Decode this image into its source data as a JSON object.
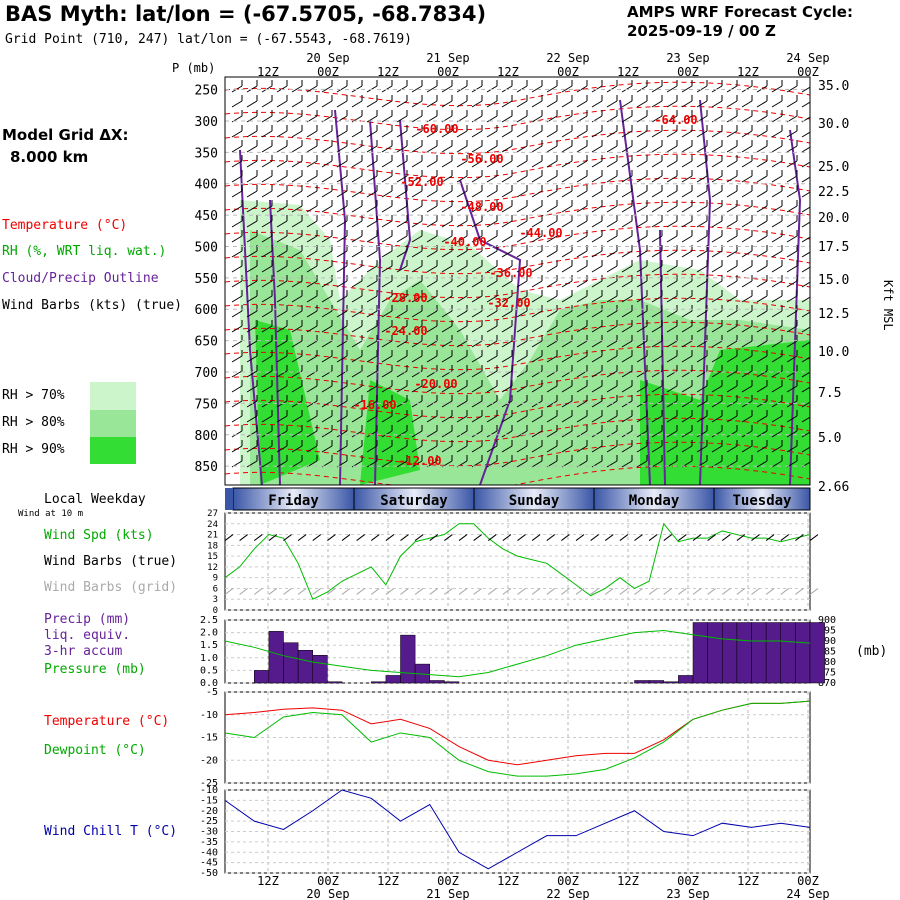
{
  "header": {
    "title": "BAS Myth:  lat/lon = (-67.5705, -68.7834)",
    "grid_point": "Grid Point (710, 247) lat/lon = (-67.5543, -68.7619)",
    "cycle_line1": "AMPS WRF Forecast Cycle:",
    "cycle_line2": "2025-09-19 / 00  Z"
  },
  "model_grid": {
    "label": "Model Grid ΔX:",
    "value": "8.000 km"
  },
  "colors": {
    "temperature": "#ee0000",
    "rh": "#00aa00",
    "cloud": "#662299",
    "wind": "#000000",
    "grid_wind": "#aaaaaa",
    "pressure": "#00bb00",
    "precip": "#551a8b",
    "windchill": "#0000aa",
    "rh70": "#ccf5cc",
    "rh80": "#99e699",
    "rh90": "#33dd33"
  },
  "left_legend": {
    "temperature": "Temperature (°C)",
    "rh": "RH (%, WRT liq. wat.)",
    "cloud": "Cloud/Precip Outline",
    "wind": "Wind Barbs (kts) (true)",
    "rh70": "RH > 70%",
    "rh80": "RH > 80%",
    "rh90": "RH > 90%"
  },
  "meteogram": {
    "pressure_axis_label": "P (mb)",
    "height_axis_label": "Kft MSL",
    "pressure_ticks": [
      "250",
      "300",
      "350",
      "400",
      "450",
      "500",
      "550",
      "600",
      "650",
      "700",
      "750",
      "800",
      "850"
    ],
    "height_ticks": [
      "35.0",
      "30.0",
      "25.0",
      "22.5",
      "20.0",
      "17.5",
      "15.0",
      "12.5",
      "10.0",
      "7.5",
      "5.0",
      "2.66"
    ],
    "time_ticks": [
      "12Z",
      "00Z",
      "12Z",
      "00Z",
      "12Z",
      "00Z",
      "12Z",
      "00Z",
      "12Z",
      "00Z"
    ],
    "date_ticks": [
      "20 Sep",
      "21 Sep",
      "22 Sep",
      "23 Sep",
      "24 Sep"
    ],
    "temp_labels": [
      "-60.00",
      "-64.00",
      "-56.00",
      "-52.00",
      "-48.00",
      "-44.00",
      "-40.00",
      "-36.00",
      "-32.00",
      "-28.00",
      "-24.00",
      "-20.00",
      "-16.00",
      "-12.00"
    ]
  },
  "weekday": {
    "label": "Local Weekday",
    "days": [
      "Friday",
      "Saturday",
      "Sunday",
      "Monday",
      "Tuesday"
    ]
  },
  "panels": {
    "wind": {
      "sublabel": "Wind at 10 m",
      "speed": "Wind Spd (kts)",
      "barbs_true": "Wind Barbs (true)",
      "barbs_grid": "Wind Barbs (grid)",
      "yticks": [
        "27",
        "24",
        "21",
        "18",
        "15",
        "12",
        "9",
        "6",
        "3",
        "0"
      ]
    },
    "precip": {
      "l1": "Precip (mm)",
      "l2": "liq. equiv.",
      "l3": "3-hr accum",
      "l4": "Pressure (mb)",
      "unit": "(mb)",
      "yticks_left": [
        "2.5",
        "2.0",
        "1.5",
        "1.0",
        "0.5",
        "0.0"
      ],
      "yticks_right": [
        "900",
        "895",
        "890",
        "885",
        "880",
        "875",
        "870"
      ]
    },
    "temp": {
      "temp_label": "Temperature (°C)",
      "dew_label": "Dewpoint (°C)",
      "yticks": [
        "-5",
        "-10",
        "-15",
        "-20",
        "-25"
      ]
    },
    "chill": {
      "label": "Wind Chill T (°C)",
      "yticks": [
        "-10",
        "-15",
        "-20",
        "-25",
        "-30",
        "-35",
        "-40",
        "-45",
        "-50"
      ]
    }
  },
  "chart_data": [
    {
      "type": "line",
      "title": "10 m Wind Speed (kts)",
      "x": [
        0,
        3,
        6,
        9,
        12,
        15,
        18,
        21,
        24,
        27,
        30,
        33,
        36,
        39,
        42,
        45,
        48,
        51,
        54,
        57,
        60,
        63,
        66,
        69,
        72,
        75,
        78,
        81,
        84,
        87,
        90,
        93,
        96,
        99,
        102,
        105,
        108,
        111,
        114,
        117,
        120
      ],
      "series": [
        {
          "name": "Wind Spd (kts)",
          "values": [
            9,
            12,
            17,
            21,
            20,
            13,
            3,
            5,
            8,
            10,
            12,
            7,
            15,
            19,
            20,
            21,
            24,
            24,
            20,
            17,
            15,
            14,
            13,
            10,
            7,
            4,
            6,
            9,
            6,
            8,
            24,
            19,
            20,
            20,
            22,
            21,
            20,
            20,
            19,
            20,
            21
          ]
        }
      ],
      "ylim": [
        0,
        27
      ]
    },
    {
      "type": "bar",
      "title": "Precip (mm) 3-hr accum",
      "x": [
        0,
        3,
        6,
        9,
        12,
        15,
        18,
        21,
        24,
        27,
        30,
        33,
        36,
        39,
        42,
        45,
        48,
        51,
        54,
        57,
        60,
        63,
        66,
        69,
        72,
        75,
        78,
        81,
        84,
        87,
        90,
        93,
        96,
        99,
        102,
        105,
        108,
        111,
        114,
        117,
        120
      ],
      "values": [
        0,
        0,
        0.5,
        2.05,
        1.6,
        1.3,
        1.1,
        0.05,
        0,
        0,
        0.05,
        0.3,
        1.9,
        0.75,
        0.1,
        0.05,
        0,
        0,
        0,
        0,
        0,
        0,
        0,
        0,
        0,
        0,
        0,
        0,
        0.1,
        0.1,
        0.05,
        0.3,
        2.4,
        2.4,
        2.4,
        2.4,
        2.4,
        2.4,
        2.4,
        2.4,
        2.4
      ],
      "ylim": [
        0,
        2.5
      ]
    },
    {
      "type": "line",
      "title": "Surface Pressure (mb)",
      "x": [
        0,
        6,
        12,
        18,
        24,
        30,
        36,
        42,
        48,
        54,
        60,
        66,
        72,
        78,
        84,
        90,
        96,
        102,
        108,
        114,
        120
      ],
      "values": [
        890,
        887,
        883,
        880,
        878,
        876,
        875,
        874,
        873,
        875,
        879,
        883,
        888,
        891,
        894,
        895,
        893,
        891,
        890,
        890,
        889
      ],
      "ylim": [
        870,
        900
      ]
    },
    {
      "type": "line",
      "title": "Temperature / Dewpoint (°C)",
      "x": [
        0,
        6,
        12,
        18,
        24,
        30,
        36,
        42,
        48,
        54,
        60,
        66,
        72,
        78,
        84,
        90,
        96,
        102,
        108,
        114,
        120
      ],
      "series": [
        {
          "name": "Temperature (°C)",
          "values": [
            -10,
            -9.5,
            -8.8,
            -8.5,
            -9,
            -12,
            -11,
            -13,
            -17,
            -20,
            -21,
            -20,
            -19,
            -18.5,
            -18.5,
            -15.5,
            -11,
            -9,
            -7.5,
            -7.5,
            -7
          ]
        },
        {
          "name": "Dewpoint (°C)",
          "values": [
            -14,
            -15,
            -10.5,
            -9.5,
            -10,
            -16,
            -14,
            -15,
            -20,
            -22.5,
            -23.5,
            -23.5,
            -23,
            -22,
            -19.5,
            -16,
            -11,
            -9,
            -7.5,
            -7.5,
            -7
          ]
        }
      ],
      "ylim": [
        -25,
        -5
      ]
    },
    {
      "type": "line",
      "title": "Wind Chill T (°C)",
      "x": [
        0,
        6,
        12,
        18,
        24,
        30,
        36,
        42,
        48,
        54,
        60,
        66,
        72,
        78,
        84,
        90,
        96,
        102,
        108,
        114,
        120
      ],
      "values": [
        -15,
        -25,
        -29,
        -20,
        -10,
        -14,
        -25,
        -17,
        -40,
        -48,
        -40,
        -32,
        -32,
        -26,
        -20,
        -30,
        -32,
        -26,
        -28,
        -26,
        -28
      ],
      "ylim": [
        -50,
        -10
      ]
    }
  ]
}
